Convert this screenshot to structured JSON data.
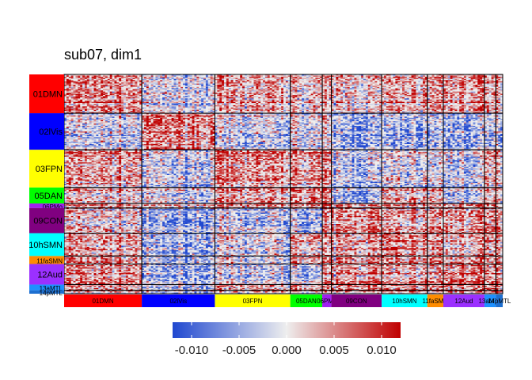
{
  "chart_data": {
    "type": "heatmap",
    "title": "sub07, dim1",
    "networks": [
      {
        "name": "01DMN",
        "color": "#FF0000",
        "size": 34
      },
      {
        "name": "02lVis",
        "color": "#0000FF",
        "size": 32
      },
      {
        "name": "03FPN",
        "color": "#FFFF00",
        "size": 33
      },
      {
        "name": "05DAN",
        "color": "#00FF00",
        "size": 14
      },
      {
        "name": "06PMo",
        "color": "#A020F0",
        "size": 4
      },
      {
        "name": "09CON",
        "color": "#800080",
        "size": 22
      },
      {
        "name": "10hSMN",
        "color": "#00FFFF",
        "size": 20
      },
      {
        "name": "11faSMN",
        "color": "#FF8C00",
        "size": 7
      },
      {
        "name": "12Aud",
        "color": "#9B30FF",
        "size": 18
      },
      {
        "name": "13aMTL",
        "color": "#1E90FF",
        "size": 5
      },
      {
        "name": "14pMTL",
        "color": "#1E6FD0",
        "size": 3
      }
    ],
    "colorbar": {
      "min": -0.012,
      "max": 0.012,
      "ticks": [
        -0.01,
        -0.005,
        0.0,
        0.005,
        0.01
      ],
      "tick_labels": [
        "-0.010",
        "-0.005",
        "0.000",
        "0.005",
        "0.010"
      ],
      "low_color": "#2048D0",
      "mid_color": "#EEEEEE",
      "high_color": "#C00000"
    },
    "block_means": [
      [
        0.006,
        -0.002,
        0.004,
        0.003,
        0.002,
        0.002,
        0.004,
        0.005,
        0.006,
        0.004,
        0.004
      ],
      [
        -0.002,
        0.007,
        -0.003,
        -0.001,
        -0.001,
        -0.006,
        -0.006,
        -0.005,
        -0.006,
        -0.004,
        -0.004
      ],
      [
        0.004,
        -0.003,
        0.005,
        0.005,
        0.003,
        -0.004,
        -0.002,
        -0.002,
        -0.003,
        0.003,
        0.003
      ],
      [
        0.003,
        -0.001,
        0.005,
        0.008,
        0.004,
        -0.005,
        0.004,
        0.004,
        -0.003,
        0.003,
        0.003
      ],
      [
        0.002,
        -0.001,
        0.003,
        0.004,
        0.006,
        0.003,
        0.003,
        0.003,
        0.003,
        0.003,
        0.003
      ],
      [
        0.002,
        -0.006,
        -0.004,
        -0.005,
        0.003,
        0.007,
        0.004,
        0.005,
        0.006,
        0.006,
        0.006
      ],
      [
        0.004,
        -0.006,
        -0.002,
        0.004,
        0.003,
        0.004,
        0.006,
        0.005,
        0.004,
        0.005,
        0.005
      ],
      [
        0.005,
        -0.005,
        -0.002,
        0.004,
        0.003,
        0.005,
        0.005,
        0.007,
        0.005,
        0.005,
        0.005
      ],
      [
        0.006,
        -0.006,
        -0.003,
        -0.003,
        0.003,
        0.006,
        0.004,
        0.005,
        0.008,
        0.006,
        0.006
      ],
      [
        0.004,
        -0.004,
        0.003,
        0.003,
        0.003,
        0.006,
        0.005,
        0.005,
        0.006,
        0.008,
        0.007
      ],
      [
        0.004,
        -0.004,
        0.003,
        0.003,
        0.003,
        0.006,
        0.005,
        0.005,
        0.006,
        0.007,
        0.008
      ]
    ]
  }
}
